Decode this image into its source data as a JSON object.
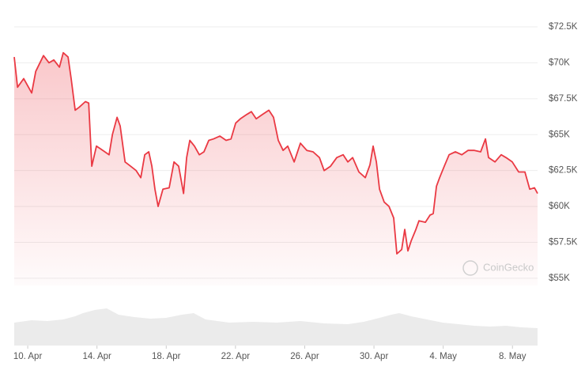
{
  "chart_data": {
    "type": "area",
    "color": "#ea3943",
    "grid": true,
    "watermark": "CoinGecko",
    "xlim": [
      -0.78,
      29.45
    ],
    "xticks": [
      {
        "value": 0,
        "label": "10. Apr"
      },
      {
        "value": 4,
        "label": "14. Apr"
      },
      {
        "value": 8,
        "label": "18. Apr"
      },
      {
        "value": 12,
        "label": "22. Apr"
      },
      {
        "value": 16,
        "label": "26. Apr"
      },
      {
        "value": 20,
        "label": "30. Apr"
      },
      {
        "value": 24,
        "label": "4. May"
      },
      {
        "value": 28,
        "label": "8. May"
      }
    ],
    "ylim": [
      54500,
      73000
    ],
    "yticks": [
      {
        "value": 55000,
        "label": "$55K"
      },
      {
        "value": 57500,
        "label": "$57.5K"
      },
      {
        "value": 60000,
        "label": "$60K"
      },
      {
        "value": 62500,
        "label": "$62.5K"
      },
      {
        "value": 65000,
        "label": "$65K"
      },
      {
        "value": 67500,
        "label": "$67.5K"
      },
      {
        "value": 70000,
        "label": "$70K"
      },
      {
        "value": 72500,
        "label": "$72.5K"
      }
    ],
    "x": [
      -0.78,
      -0.59,
      -0.23,
      0.23,
      0.46,
      0.91,
      1.23,
      1.51,
      1.83,
      2.05,
      2.33,
      2.51,
      2.74,
      2.97,
      3.33,
      3.52,
      3.7,
      3.97,
      4.34,
      4.7,
      4.89,
      5.16,
      5.34,
      5.62,
      5.94,
      6.26,
      6.53,
      6.76,
      6.99,
      7.17,
      7.35,
      7.53,
      7.81,
      8.17,
      8.45,
      8.72,
      9.0,
      9.18,
      9.36,
      9.63,
      9.91,
      10.18,
      10.46,
      10.73,
      11.1,
      11.46,
      11.74,
      12.01,
      12.28,
      12.65,
      12.92,
      13.2,
      13.56,
      13.93,
      14.2,
      14.47,
      14.75,
      15.02,
      15.39,
      15.75,
      16.12,
      16.48,
      16.85,
      17.12,
      17.49,
      17.85,
      18.22,
      18.49,
      18.77,
      19.13,
      19.5,
      19.77,
      19.95,
      20.14,
      20.32,
      20.59,
      20.87,
      21.14,
      21.32,
      21.6,
      21.78,
      21.96,
      22.15,
      22.42,
      22.6,
      22.97,
      23.24,
      23.42,
      23.61,
      23.79,
      24.06,
      24.34,
      24.7,
      25.07,
      25.43,
      25.8,
      26.16,
      26.44,
      26.62,
      26.99,
      27.35,
      27.63,
      27.99,
      28.36,
      28.72,
      29.0,
      29.27,
      29.45
    ],
    "values": [
      70400,
      68300,
      68900,
      67900,
      69400,
      70500,
      70000,
      70200,
      69700,
      70700,
      70400,
      68900,
      66700,
      66900,
      67300,
      67200,
      62800,
      64200,
      63900,
      63600,
      65000,
      66200,
      65600,
      63100,
      62800,
      62500,
      62000,
      63600,
      63800,
      62800,
      61200,
      60000,
      61200,
      61300,
      63100,
      62800,
      60900,
      63400,
      64600,
      64200,
      63600,
      63800,
      64600,
      64700,
      64900,
      64600,
      64700,
      65800,
      66100,
      66400,
      66600,
      66100,
      66400,
      66700,
      66200,
      64600,
      63900,
      64200,
      63100,
      64400,
      63900,
      63800,
      63400,
      62500,
      62800,
      63400,
      63600,
      63100,
      63400,
      62400,
      62000,
      62900,
      64200,
      63100,
      61200,
      60300,
      60000,
      59200,
      56700,
      57000,
      58400,
      56900,
      57600,
      58400,
      59000,
      58900,
      59400,
      59500,
      61400,
      62000,
      62800,
      63600,
      63800,
      63600,
      63900,
      63900,
      63800,
      64700,
      63400,
      63100,
      63600,
      63400,
      63100,
      62400,
      62400,
      61200,
      61300,
      60900
    ]
  }
}
